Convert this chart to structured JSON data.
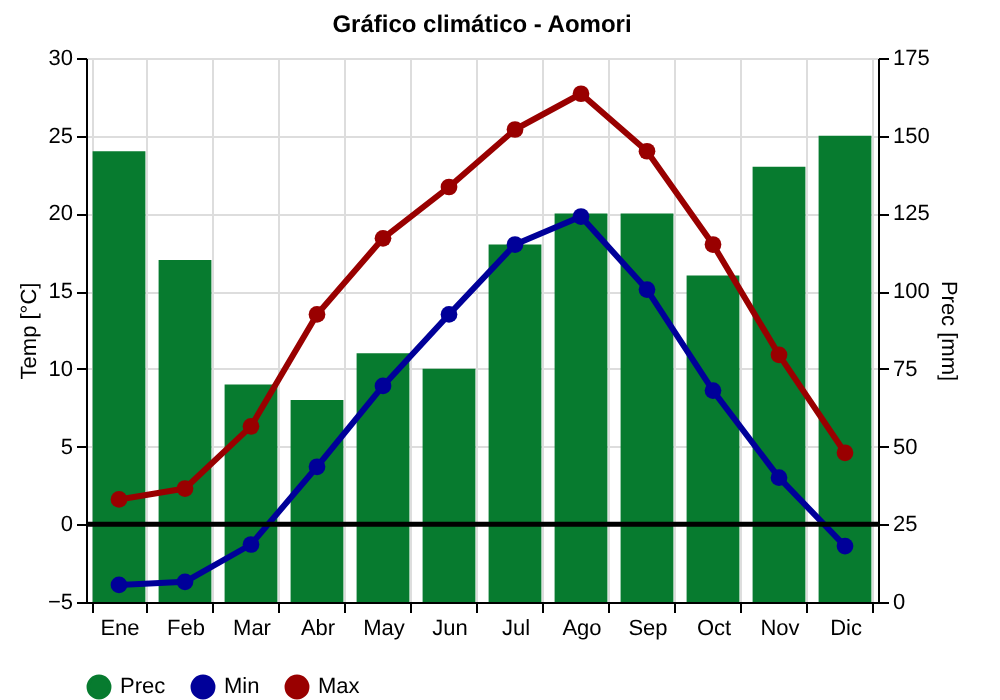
{
  "chart_data": {
    "type": "bar",
    "title": "Gráfico climático - Aomori",
    "ylabel": "Temp [°C]",
    "y2label": "Prec [mm]",
    "categories": [
      "Ene",
      "Feb",
      "Mar",
      "Abr",
      "May",
      "Jun",
      "Jul",
      "Ago",
      "Sep",
      "Oct",
      "Nov",
      "Dic"
    ],
    "series": [
      {
        "name": "Prec",
        "axis": "y2",
        "color": "#077b2f",
        "values": [
          145,
          110,
          70,
          65,
          80,
          75,
          115,
          125,
          125,
          105,
          140,
          150
        ]
      },
      {
        "name": "Min",
        "type": "line",
        "color": "#000099",
        "values": [
          -3.9,
          -3.7,
          -1.3,
          3.7,
          8.9,
          13.5,
          18,
          19.8,
          15.1,
          8.6,
          3,
          -1.4
        ]
      },
      {
        "name": "Max",
        "type": "line",
        "color": "#990000",
        "values": [
          1.6,
          2.3,
          6.3,
          13.5,
          18.4,
          21.7,
          25.4,
          27.7,
          24,
          18,
          10.9,
          4.6
        ]
      }
    ],
    "ylim": [
      -5,
      30
    ],
    "yticks": [
      -5,
      0,
      5,
      10,
      15,
      20,
      25,
      30
    ],
    "y2lim": [
      0,
      175
    ],
    "y2ticks": [
      0,
      25,
      50,
      75,
      100,
      125,
      150,
      175
    ],
    "ref_lines": [
      {
        "axis": "y",
        "value": 0,
        "color": "#000000"
      }
    ],
    "grid": true,
    "legend": "bottom",
    "marker": "circle",
    "line_style": "solid"
  }
}
